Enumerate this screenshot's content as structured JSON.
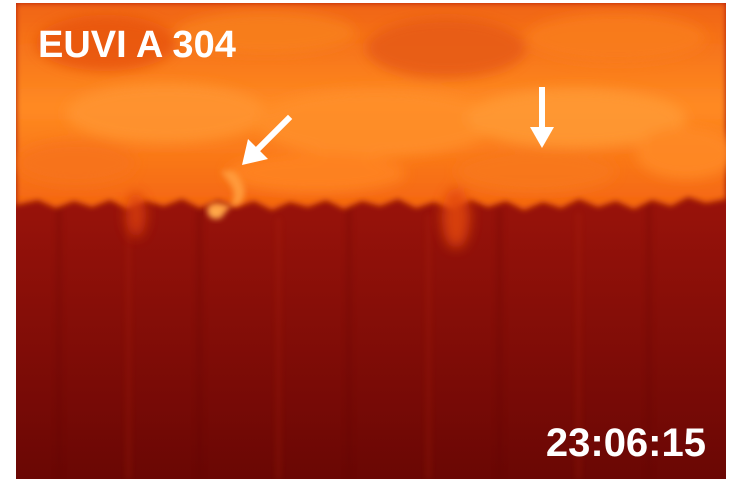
{
  "image": {
    "instrument_label": "EUVI A 304",
    "timestamp": "23:06:15",
    "annotations": [
      {
        "name": "arrow-diagonal",
        "color": "#ffffff"
      },
      {
        "name": "arrow-down",
        "color": "#ffffff"
      }
    ],
    "colors": {
      "corona_bright": "#ff7a1a",
      "corona_mid": "#f25a0c",
      "disk_top": "#b01807",
      "disk_bottom": "#6e0804",
      "annotation": "#ffffff"
    }
  }
}
